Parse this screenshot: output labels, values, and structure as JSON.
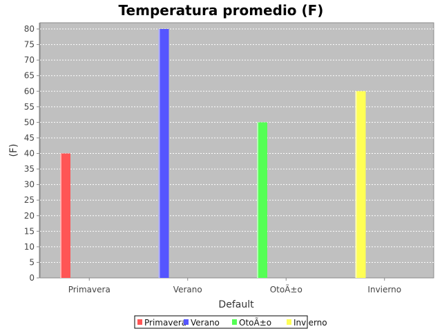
{
  "chart_data": {
    "type": "bar",
    "title": "Temperatura promedio (F)",
    "xlabel": "Default",
    "ylabel": "(F)",
    "ylim": [
      0,
      82
    ],
    "yticks": [
      0,
      5,
      10,
      15,
      20,
      25,
      30,
      35,
      40,
      45,
      50,
      55,
      60,
      65,
      70,
      75,
      80
    ],
    "grid": true,
    "legend_position": "bottom",
    "categories": [
      "Primavera",
      "Verano",
      "OtoÃ±o",
      "Invierno"
    ],
    "series": [
      {
        "name": "Primavera",
        "color": "#ff5555",
        "values": [
          40,
          null,
          null,
          null
        ]
      },
      {
        "name": "Verano",
        "color": "#5555ff",
        "values": [
          null,
          80,
          null,
          null
        ]
      },
      {
        "name": "OtoÃ±o",
        "color": "#55ff55",
        "values": [
          null,
          null,
          50,
          null
        ]
      },
      {
        "name": "Invierno",
        "color": "#ffff55",
        "values": [
          null,
          null,
          null,
          60
        ]
      }
    ],
    "plot_background": "#c0c0c0"
  }
}
